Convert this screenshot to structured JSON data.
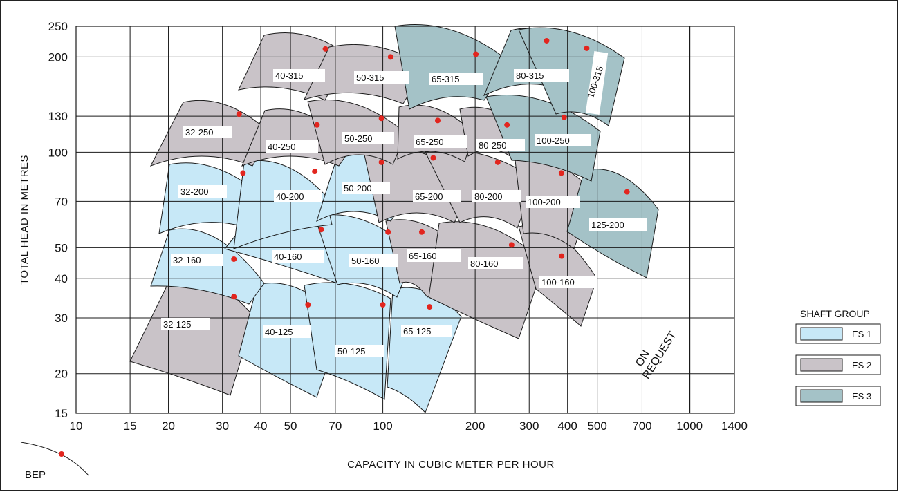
{
  "chart_data": {
    "type": "scatter",
    "xlabel": "CAPACITY   IN CUBIC METER PER HOUR",
    "ylabel": "TOTAL  HEAD  IN  METRES",
    "x_scale": "log",
    "y_scale": "log",
    "xlim": [
      10,
      1400
    ],
    "ylim": [
      15,
      250
    ],
    "x_ticks": [
      10,
      15,
      20,
      30,
      40,
      50,
      70,
      100,
      200,
      300,
      400,
      500,
      700,
      1000,
      1400
    ],
    "y_ticks": [
      15,
      20,
      30,
      40,
      50,
      70,
      100,
      130,
      200,
      250
    ],
    "grid": true,
    "colors": {
      "ES 1": "#c7e8f7",
      "ES 2": "#c9c3c8",
      "ES 3": "#a4c2c7",
      "bep": "#e2251e"
    },
    "pumps": [
      {
        "label": "32-125",
        "group": "ES 2",
        "bep": [
          32.7,
          35
        ]
      },
      {
        "label": "40-125",
        "group": "ES 1",
        "bep": [
          57,
          33
        ]
      },
      {
        "label": "50-125",
        "group": "ES 1",
        "bep": [
          100,
          33
        ]
      },
      {
        "label": "65-125",
        "group": "ES 1",
        "bep": [
          142,
          32.5
        ]
      },
      {
        "label": "32-160",
        "group": "ES 1",
        "bep": [
          32.7,
          46
        ]
      },
      {
        "label": "40-160",
        "group": "ES 1",
        "bep": [
          63,
          57
        ]
      },
      {
        "label": "50-160",
        "group": "ES 1",
        "bep": [
          104,
          56
        ]
      },
      {
        "label": "65-160",
        "group": "ES 2",
        "bep": [
          134,
          56
        ]
      },
      {
        "label": "80-160",
        "group": "ES 2",
        "bep": [
          263,
          51
        ]
      },
      {
        "label": "100-160",
        "group": "ES 2",
        "bep": [
          383,
          47
        ]
      },
      {
        "label": "32-200",
        "group": "ES 1",
        "bep": [
          35,
          86
        ]
      },
      {
        "label": "40-200",
        "group": "ES 1",
        "bep": [
          60,
          87
        ]
      },
      {
        "label": "50-200",
        "group": "ES 1",
        "bep": [
          99,
          93
        ]
      },
      {
        "label": "65-200",
        "group": "ES 2",
        "bep": [
          146,
          96
        ]
      },
      {
        "label": "80-200",
        "group": "ES 2",
        "bep": [
          237,
          93
        ]
      },
      {
        "label": "100-200",
        "group": "ES 2",
        "bep": [
          382,
          86
        ]
      },
      {
        "label": "125-200",
        "group": "ES 3",
        "bep": [
          625,
          75
        ]
      },
      {
        "label": "32-250",
        "group": "ES 2",
        "bep": [
          34,
          132
        ]
      },
      {
        "label": "40-250",
        "group": "ES 2",
        "bep": [
          61,
          122
        ]
      },
      {
        "label": "50-250",
        "group": "ES 2",
        "bep": [
          99,
          128
        ]
      },
      {
        "label": "65-250",
        "group": "ES 2",
        "bep": [
          151,
          126
        ]
      },
      {
        "label": "80-250",
        "group": "ES 2",
        "bep": [
          254,
          122
        ]
      },
      {
        "label": "100-250",
        "group": "ES 3",
        "bep": [
          390,
          129
        ]
      },
      {
        "label": "40-315",
        "group": "ES 2",
        "bep": [
          65,
          212
        ]
      },
      {
        "label": "50-315",
        "group": "ES 2",
        "bep": [
          106,
          200
        ]
      },
      {
        "label": "65-315",
        "group": "ES 3",
        "bep": [
          201,
          204
        ]
      },
      {
        "label": "80-315",
        "group": "ES 3",
        "bep": [
          342,
          225
        ]
      },
      {
        "label": "100-315",
        "group": "ES 3",
        "bep": [
          462,
          213
        ]
      }
    ],
    "annotation": "ON\nREQUEST",
    "legend": {
      "title": "SHAFT GROUP",
      "position": "right",
      "entries": [
        "ES 1",
        "ES 2",
        "ES 3"
      ]
    },
    "bep_legend": "BEP"
  }
}
